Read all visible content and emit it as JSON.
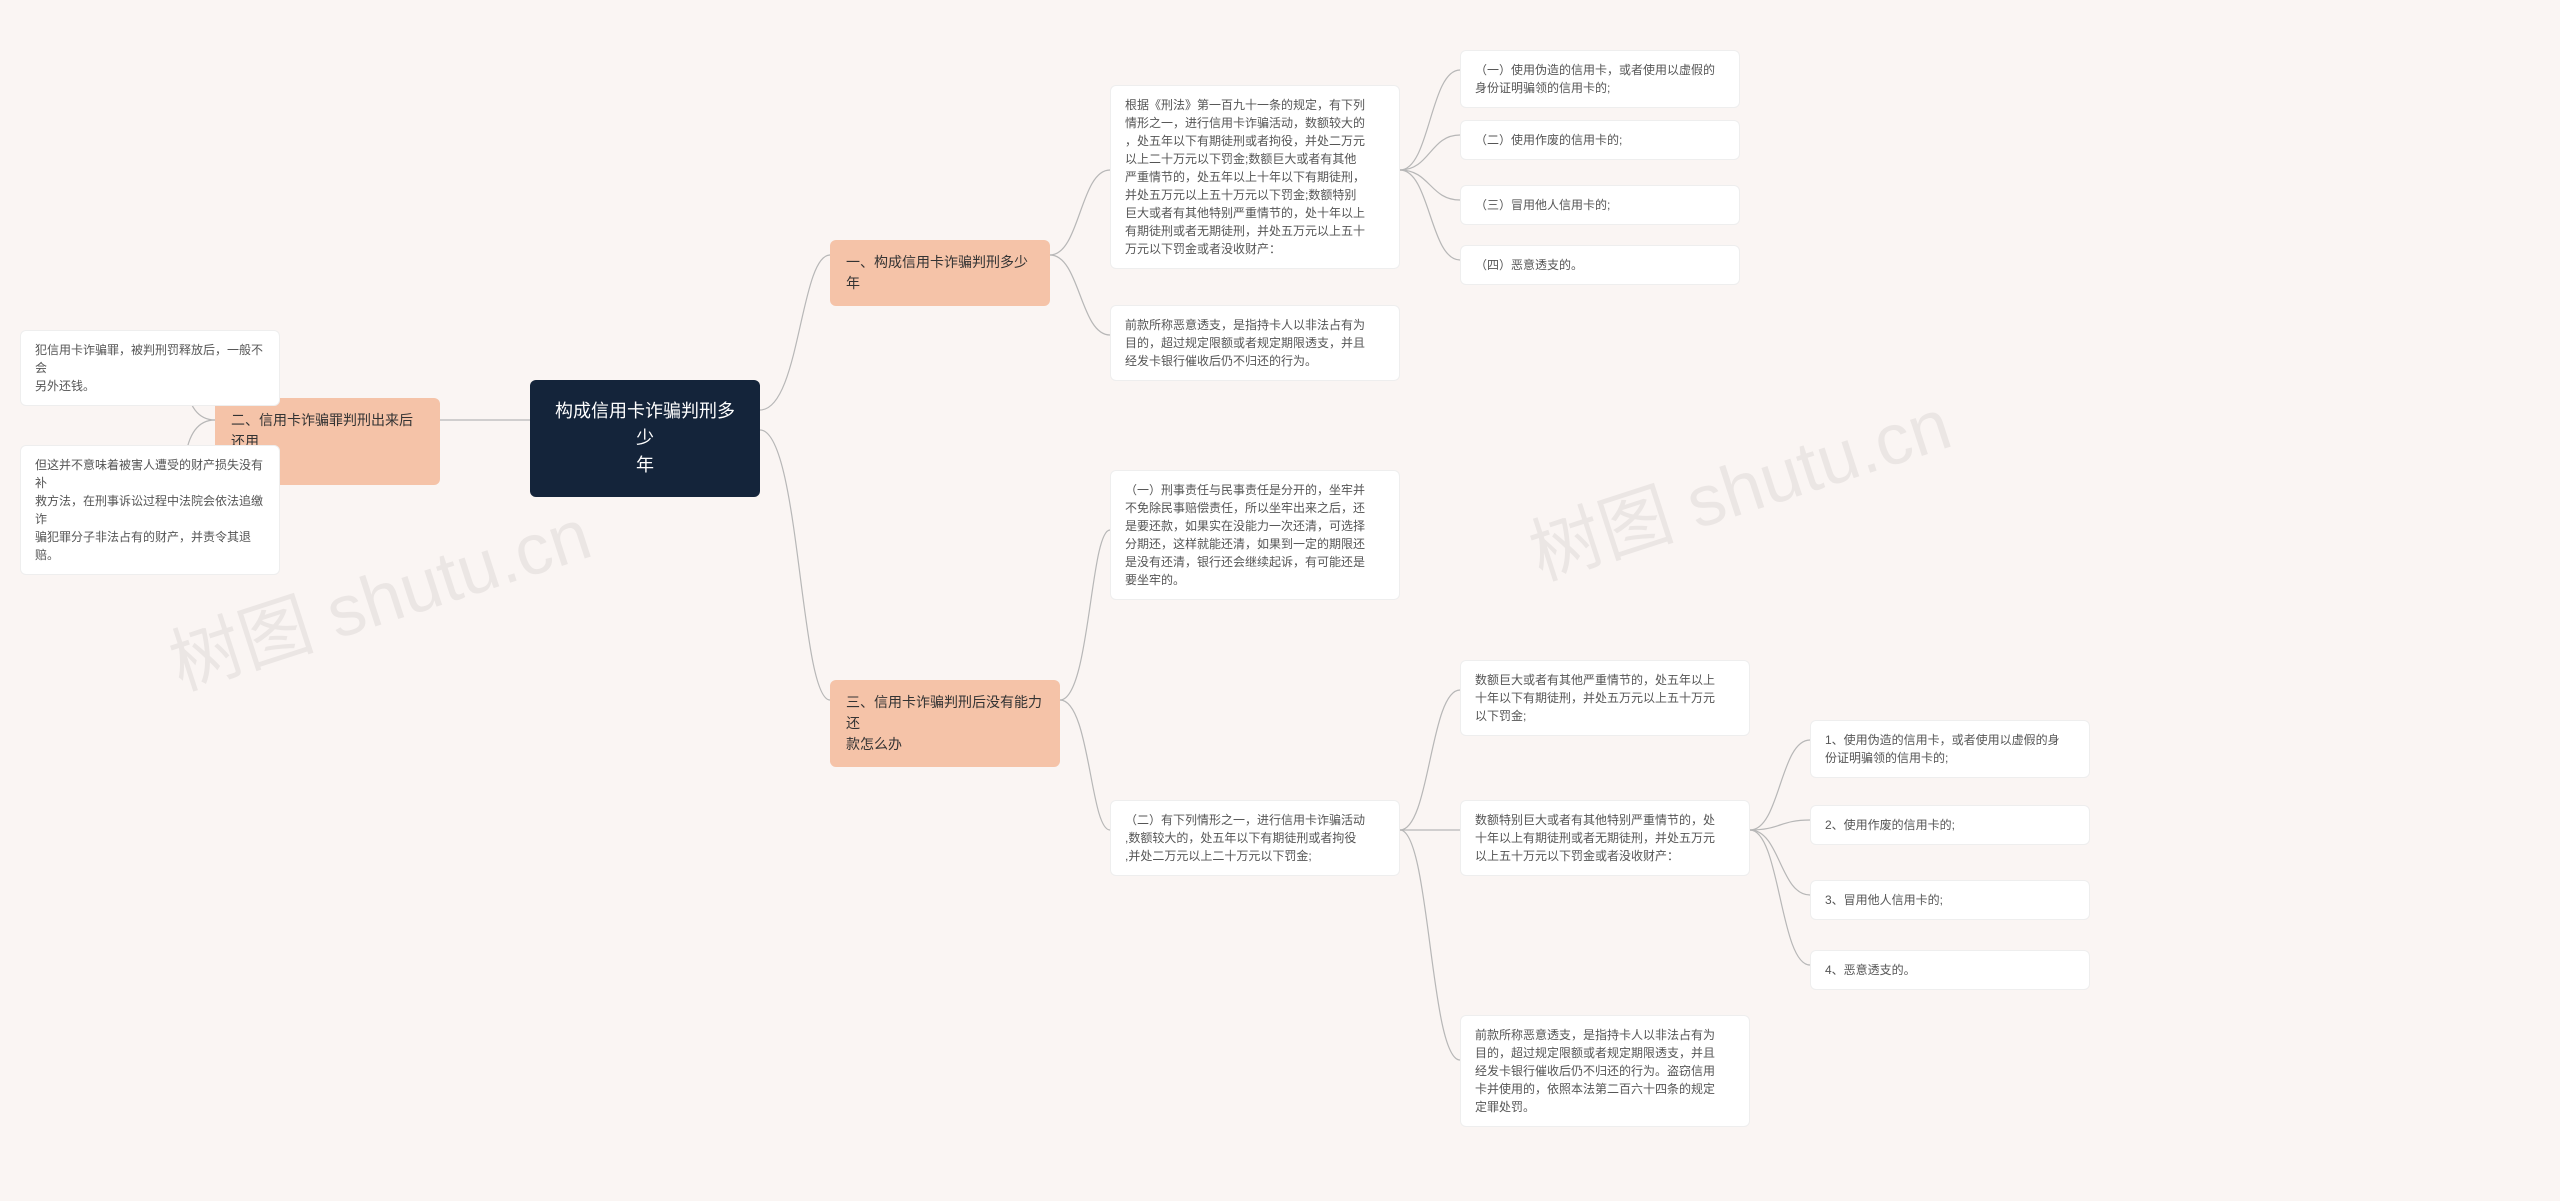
{
  "background": "#faf5f3",
  "colors": {
    "root_bg": "#14243a",
    "root_fg": "#ffffff",
    "branch_bg": "#f5c3a8",
    "branch_fg": "#333333",
    "leaf_bg": "#ffffff",
    "leaf_fg": "#555555",
    "connector": "#b7b7b7"
  },
  "watermark": {
    "text": "树图 shutu.cn",
    "opacity": 0.06,
    "rotation_deg": -18
  },
  "root": {
    "text": "构成信用卡诈骗判刑多少\n年"
  },
  "left": {
    "branch2": {
      "text": "二、信用卡诈骗罪判刑出来后还用\n还钱吗"
    },
    "l2a": {
      "text": "犯信用卡诈骗罪，被判刑罚释放后，一般不会\n另外还钱。"
    },
    "l2b": {
      "text": "但这并不意味着被害人遭受的财产损失没有补\n救方法，在刑事诉讼过程中法院会依法追缴诈\n骗犯罪分子非法占有的财产，并责令其退赔。"
    }
  },
  "right": {
    "branch1": {
      "text": "一、构成信用卡诈骗判刑多少年"
    },
    "b1a": {
      "text": "根据《刑法》第一百九十一条的规定，有下列\n情形之一，进行信用卡诈骗活动，数额较大的\n，处五年以下有期徒刑或者拘役，并处二万元\n以上二十万元以下罚金;数额巨大或者有其他\n严重情节的，处五年以上十年以下有期徒刑，\n并处五万元以上五十万元以下罚金;数额特别\n巨大或者有其他特别严重情节的，处十年以上\n有期徒刑或者无期徒刑，并处五万元以上五十\n万元以下罚金或者没收财产："
    },
    "b1a1": {
      "text": "（一）使用伪造的信用卡，或者使用以虚假的\n身份证明骗领的信用卡的;"
    },
    "b1a2": {
      "text": "（二）使用作废的信用卡的;"
    },
    "b1a3": {
      "text": "（三）冒用他人信用卡的;"
    },
    "b1a4": {
      "text": "（四）恶意透支的。"
    },
    "b1b": {
      "text": "前款所称恶意透支，是指持卡人以非法占有为\n目的，超过规定限额或者规定期限透支，并且\n经发卡银行催收后仍不归还的行为。"
    },
    "branch3": {
      "text": "三、信用卡诈骗判刑后没有能力还\n款怎么办"
    },
    "b3a": {
      "text": "（一）刑事责任与民事责任是分开的，坐牢并\n不免除民事赔偿责任，所以坐牢出来之后，还\n是要还款，如果实在没能力一次还清，可选择\n分期还，这样就能还清，如果到一定的期限还\n是没有还清，银行还会继续起诉，有可能还是\n要坐牢的。"
    },
    "b3b": {
      "text": "（二）有下列情形之一，进行信用卡诈骗活动\n,数额较大的，处五年以下有期徒刑或者拘役\n,并处二万元以上二十万元以下罚金;"
    },
    "b3b1": {
      "text": "数额巨大或者有其他严重情节的，处五年以上\n十年以下有期徒刑，并处五万元以上五十万元\n以下罚金;"
    },
    "b3b2": {
      "text": "数额特别巨大或者有其他特别严重情节的，处\n十年以上有期徒刑或者无期徒刑，并处五万元\n以上五十万元以下罚金或者没收财产："
    },
    "b3b2_1": {
      "text": "1、使用伪造的信用卡，或者使用以虚假的身\n份证明骗领的信用卡的;"
    },
    "b3b2_2": {
      "text": "2、使用作废的信用卡的;"
    },
    "b3b2_3": {
      "text": "3、冒用他人信用卡的;"
    },
    "b3b2_4": {
      "text": "4、恶意透支的。"
    },
    "b3b3": {
      "text": "前款所称恶意透支，是指持卡人以非法占有为\n目的，超过规定限额或者规定期限透支，并且\n经发卡银行催收后仍不归还的行为。盗窃信用\n卡并使用的，依照本法第二百六十四条的规定\n定罪处罚。"
    }
  }
}
